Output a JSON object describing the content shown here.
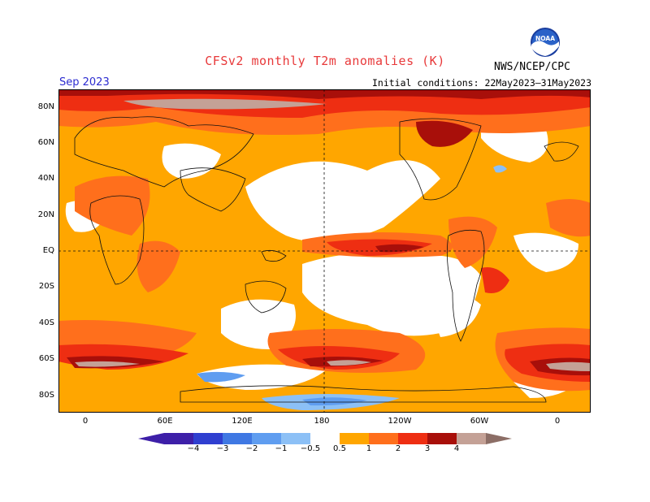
{
  "title": "CFSv2 monthly T2m anomalies (K)",
  "month": "Sep 2023",
  "initial_conditions": "Initial conditions: 22May2023–31May2023",
  "agency": "NWS/NCEP/CPC",
  "logo": {
    "icon": "noaa-logo-icon",
    "text": "NOAA"
  },
  "map": {
    "projection": "equirectangular",
    "center_longitude": "180",
    "lat_labels": [
      "80N",
      "60N",
      "40N",
      "20N",
      "EQ",
      "20S",
      "40S",
      "60S",
      "80S"
    ],
    "lon_labels": [
      "0",
      "60E",
      "120E",
      "180",
      "120W",
      "60W",
      "0"
    ]
  },
  "colors": {
    "neg4": "#3d1fa8",
    "neg3": "#2f3fd0",
    "neg2": "#3f78e3",
    "neg1": "#5f9df0",
    "neg05": "#8cc0f6",
    "white": "#ffffff",
    "pos05": "#ffa600",
    "pos1": "#ff6f1c",
    "pos2": "#ee2e12",
    "pos3": "#a80f0a",
    "pos4": "#c4a196",
    "pos4plus": "#8c6e66"
  },
  "colorbar": {
    "labels": [
      "−4",
      "−3",
      "−2",
      "−1",
      "−0.5",
      "0.5",
      "1",
      "2",
      "3",
      "4"
    ]
  }
}
